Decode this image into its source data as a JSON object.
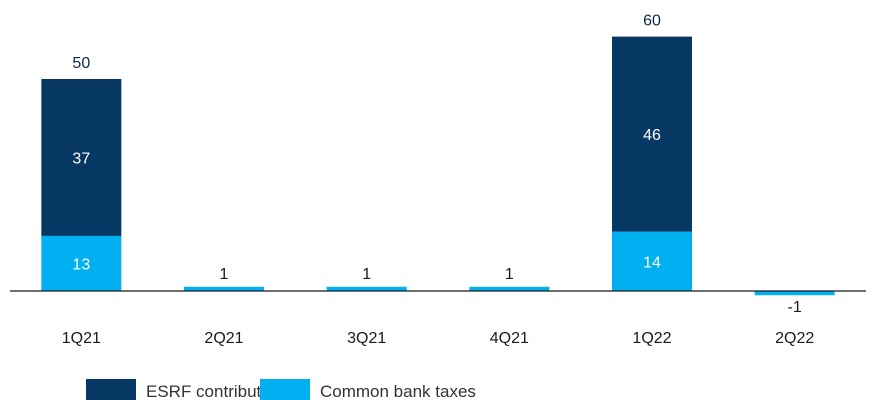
{
  "chart_data": {
    "type": "bar",
    "stacked": true,
    "categories": [
      "1Q21",
      "2Q21",
      "3Q21",
      "4Q21",
      "1Q22",
      "2Q22"
    ],
    "series": [
      {
        "name": "Common bank taxes",
        "values": [
          13,
          1,
          1,
          1,
          14,
          -1
        ],
        "color": "#00B0F0"
      },
      {
        "name": "ESRF contribution",
        "values": [
          37,
          0,
          0,
          0,
          46,
          0
        ],
        "color": "#073763"
      }
    ],
    "totals": [
      50,
      null,
      null,
      null,
      60,
      null
    ],
    "title": "",
    "xlabel": "",
    "ylabel": "",
    "ylim": [
      -3,
      62
    ],
    "grid": false,
    "legend": "bottom-left",
    "legend_order": [
      "ESRF contribution",
      "Common bank taxes"
    ],
    "colors": {
      "esrf": "#073763",
      "bank_taxes": "#00B0F0",
      "axis": "#1a1a1a",
      "label_dark_on_light": "#1a1a1a",
      "label_on_bar": "#ffffff",
      "total_label": "#0b2a4a"
    }
  }
}
